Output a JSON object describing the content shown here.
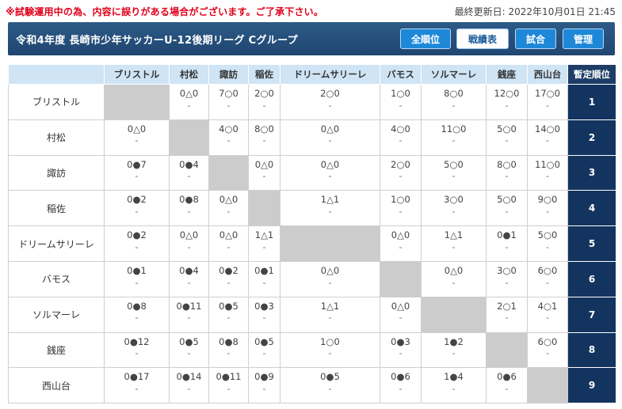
{
  "notice": "※試験運用中の為、内容に誤りがある場合がございます。ご了承下さい。",
  "updated": "最終更新日: 2022年10月01日 21:45",
  "title": "令和4年度 長崎市少年サッカーU-12後期リーグ Cグループ",
  "buttons": [
    {
      "label": "全順位",
      "state": "primary"
    },
    {
      "label": "戦績表",
      "state": "active"
    },
    {
      "label": "試合",
      "state": "primary"
    },
    {
      "label": "管理",
      "state": "primary"
    }
  ],
  "rank_header": "暫定順位",
  "teams": [
    "ブリストル",
    "村松",
    "諏訪",
    "稲佐",
    "ドリームサリーレ",
    "バモス",
    "ソルマーレ",
    "銭座",
    "西山台"
  ],
  "rows": [
    {
      "rank": "1",
      "cells": [
        null,
        "0△0",
        "7○0",
        "2○0",
        "2○0",
        "1○0",
        "8○0",
        "12○0",
        "17○0"
      ]
    },
    {
      "rank": "2",
      "cells": [
        "0△0",
        null,
        "4○0",
        "8○0",
        "0△0",
        "4○0",
        "11○0",
        "5○0",
        "14○0"
      ]
    },
    {
      "rank": "3",
      "cells": [
        "0●7",
        "0●4",
        null,
        "0△0",
        "0△0",
        "2○0",
        "5○0",
        "8○0",
        "11○0"
      ]
    },
    {
      "rank": "4",
      "cells": [
        "0●2",
        "0●8",
        "0△0",
        null,
        "1△1",
        "1○0",
        "3○0",
        "5○0",
        "9○0"
      ]
    },
    {
      "rank": "5",
      "cells": [
        "0●2",
        "0△0",
        "0△0",
        "1△1",
        null,
        "0△0",
        "1△1",
        "0●1",
        "5○0"
      ]
    },
    {
      "rank": "6",
      "cells": [
        "0●1",
        "0●4",
        "0●2",
        "0●1",
        "0△0",
        null,
        "0△0",
        "3○0",
        "6○0"
      ]
    },
    {
      "rank": "7",
      "cells": [
        "0●8",
        "0●11",
        "0●5",
        "0●3",
        "1△1",
        "0△0",
        null,
        "2○1",
        "4○1"
      ]
    },
    {
      "rank": "8",
      "cells": [
        "0●12",
        "0●5",
        "0●8",
        "0●5",
        "1○0",
        "0●3",
        "1●2",
        null,
        "6○0"
      ]
    },
    {
      "rank": "9",
      "cells": [
        "0●17",
        "0●14",
        "0●11",
        "0●9",
        "0●5",
        "0●6",
        "1●4",
        "0●6",
        null
      ]
    }
  ],
  "sub_text": "-"
}
